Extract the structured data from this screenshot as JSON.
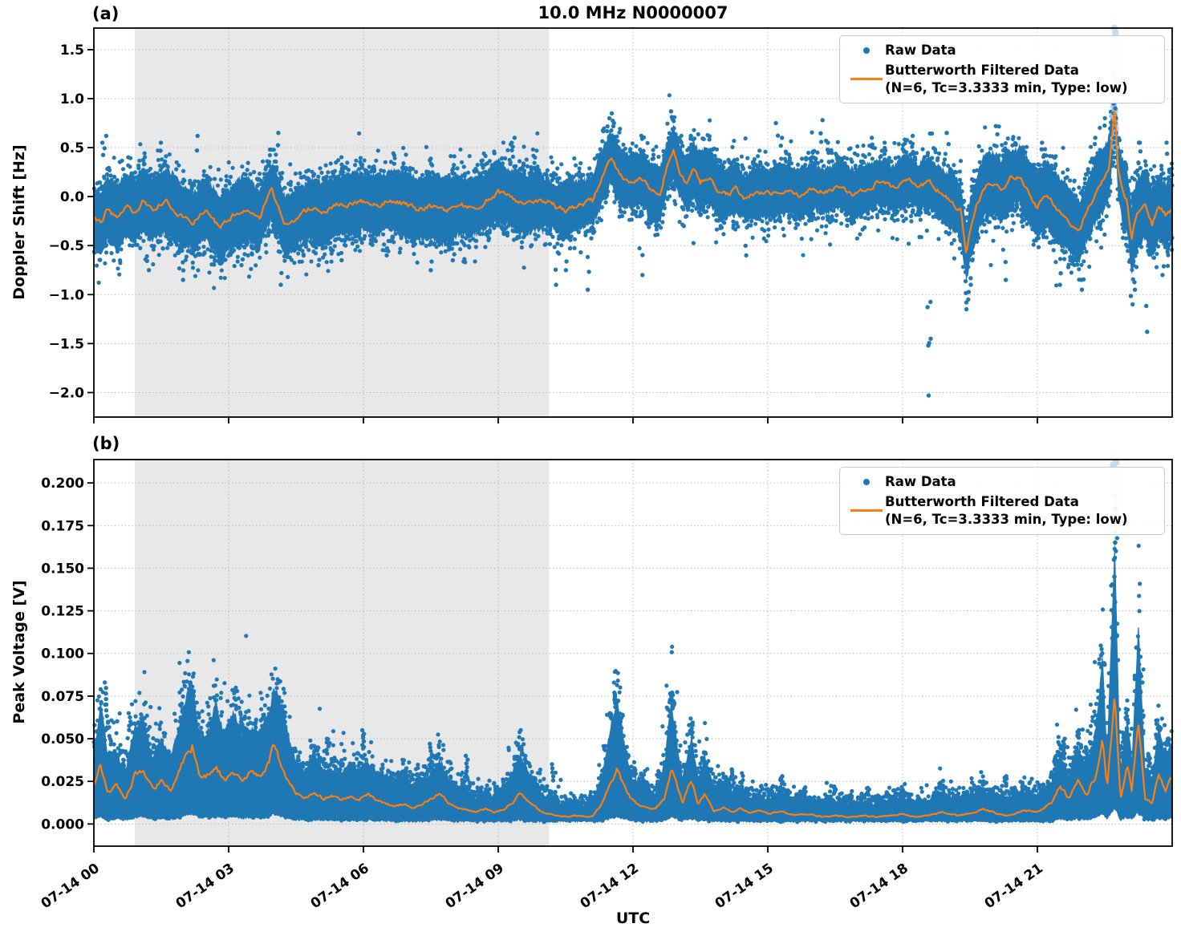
{
  "title": "10.0 MHz N0000007",
  "xlabel": "UTC",
  "colors": {
    "raw": "#1f77b4",
    "raw_faint": "#bcd7ec",
    "filtered": "#ff7f0e",
    "night_shade": "#e8e8e8",
    "grid": "#b9b9b9",
    "spine": "#000000"
  },
  "legend": {
    "raw_label": "Raw Data",
    "filtered_label": "Butterworth Filtered Data",
    "filtered_params": "(N=6, Tc=3.3333 min, Type: low)"
  },
  "x_axis": {
    "lim_hours": [
      0,
      24
    ],
    "tick_hours": [
      0,
      3,
      6,
      9,
      12,
      15,
      18,
      21
    ],
    "tick_labels": [
      "07-14 00",
      "07-14 03",
      "07-14 06",
      "07-14 09",
      "07-14 12",
      "07-14 15",
      "07-14 18",
      "07-14 21"
    ],
    "night_shading_hours": [
      0.91,
      10.13
    ]
  },
  "chart_data": [
    {
      "type": "scatter+line",
      "panel_label": "(a)",
      "ylabel": "Doppler Shift [Hz]",
      "ylim": [
        -2.25,
        1.72
      ],
      "yticks": [
        1.5,
        1.0,
        0.5,
        0.0,
        -0.5,
        -1.0,
        -1.5,
        -2.0
      ],
      "ytick_labels": [
        "1.5",
        "1.0",
        "0.5",
        "0.0",
        "−0.5",
        "−1.0",
        "−1.5",
        "−2.0"
      ],
      "legend_position": "upper right",
      "grid": true,
      "band_type": "sym",
      "raw_band": {
        "segments": [
          [
            0,
            10,
            0.32
          ],
          [
            10,
            11.2,
            0.26
          ],
          [
            11.2,
            14,
            0.28
          ],
          [
            14,
            19,
            0.25
          ],
          [
            19,
            21,
            0.3
          ],
          [
            21,
            24,
            0.33
          ]
        ]
      },
      "filtered_line": {
        "x": [
          0.0,
          0.15,
          0.3,
          0.5,
          0.7,
          0.9,
          1.1,
          1.3,
          1.6,
          1.9,
          2.2,
          2.5,
          2.8,
          3.1,
          3.4,
          3.7,
          3.95,
          4.1,
          4.25,
          4.5,
          4.8,
          5.1,
          5.4,
          5.7,
          6.0,
          6.3,
          6.6,
          6.9,
          7.2,
          7.5,
          7.8,
          8.1,
          8.4,
          8.7,
          9.0,
          9.3,
          9.6,
          9.9,
          10.2,
          10.5,
          10.8,
          11.1,
          11.35,
          11.5,
          11.65,
          11.8,
          12.0,
          12.2,
          12.4,
          12.6,
          12.75,
          12.9,
          13.05,
          13.2,
          13.35,
          13.5,
          13.7,
          13.9,
          14.1,
          14.3,
          14.5,
          14.8,
          15.1,
          15.4,
          15.7,
          16.0,
          16.3,
          16.6,
          16.9,
          17.2,
          17.5,
          17.8,
          18.1,
          18.35,
          18.6,
          18.9,
          19.1,
          19.3,
          19.42,
          19.5,
          19.65,
          19.8,
          20.0,
          20.2,
          20.4,
          20.6,
          20.8,
          21.0,
          21.2,
          21.4,
          21.6,
          21.8,
          21.95,
          22.1,
          22.3,
          22.45,
          22.6,
          22.72,
          22.8,
          22.9,
          23.0,
          23.1,
          23.2,
          23.4,
          23.55,
          23.7,
          23.85,
          24.0
        ],
        "y": [
          -0.2,
          -0.28,
          -0.12,
          -0.22,
          -0.08,
          -0.15,
          -0.05,
          -0.12,
          -0.04,
          -0.18,
          -0.25,
          -0.12,
          -0.33,
          -0.2,
          -0.12,
          -0.22,
          0.07,
          -0.1,
          -0.3,
          -0.22,
          -0.13,
          -0.18,
          -0.1,
          -0.08,
          -0.05,
          -0.1,
          -0.03,
          -0.08,
          -0.13,
          -0.1,
          -0.15,
          -0.08,
          -0.12,
          -0.05,
          0.05,
          -0.02,
          -0.08,
          -0.05,
          -0.08,
          -0.15,
          -0.08,
          -0.05,
          0.25,
          0.4,
          0.28,
          0.18,
          0.15,
          0.2,
          0.05,
          0.02,
          0.3,
          0.45,
          0.25,
          0.12,
          0.28,
          0.15,
          0.22,
          0.05,
          0.02,
          0.08,
          -0.02,
          0.05,
          0.02,
          0.08,
          0.02,
          0.1,
          0.05,
          0.12,
          0.03,
          0.08,
          0.15,
          0.08,
          0.18,
          0.1,
          0.15,
          0.02,
          -0.05,
          -0.15,
          -0.6,
          -0.35,
          -0.1,
          0.1,
          0.15,
          0.05,
          0.18,
          0.22,
          0.05,
          -0.1,
          0.02,
          -0.1,
          -0.18,
          -0.3,
          -0.35,
          -0.15,
          0.05,
          0.15,
          0.3,
          0.95,
          0.3,
          0.05,
          -0.05,
          -0.45,
          -0.2,
          -0.05,
          -0.28,
          -0.1,
          -0.18,
          -0.15
        ]
      },
      "outliers": [
        [
          0.2,
          0.55
        ],
        [
          0.25,
          0.62
        ],
        [
          1.2,
          -0.75
        ],
        [
          1.5,
          0.55
        ],
        [
          2.0,
          -0.85
        ],
        [
          2.3,
          0.62
        ],
        [
          3.3,
          -0.7
        ],
        [
          4.1,
          0.65
        ],
        [
          4.15,
          -0.9
        ],
        [
          5.0,
          -0.7
        ],
        [
          5.5,
          -0.65
        ],
        [
          6.5,
          -0.6
        ],
        [
          7.5,
          -0.75
        ],
        [
          8.0,
          -0.65
        ],
        [
          9.3,
          0.55
        ],
        [
          9.35,
          0.6
        ],
        [
          10.3,
          -0.9
        ],
        [
          10.5,
          -0.75
        ],
        [
          11.0,
          -0.95
        ],
        [
          11.5,
          0.85
        ],
        [
          11.55,
          0.75
        ],
        [
          12.2,
          -0.8
        ],
        [
          12.85,
          0.87
        ],
        [
          13.0,
          0.6
        ],
        [
          13.3,
          0.62
        ],
        [
          14.5,
          -0.6
        ],
        [
          15.2,
          0.75
        ],
        [
          15.3,
          0.6
        ],
        [
          16.2,
          0.78
        ],
        [
          16.35,
          0.55
        ],
        [
          17.3,
          0.6
        ],
        [
          17.6,
          0.55
        ],
        [
          18.2,
          0.62
        ],
        [
          18.55,
          -1.52
        ],
        [
          18.57,
          -2.03
        ],
        [
          18.6,
          -1.45
        ],
        [
          19.0,
          0.65
        ],
        [
          19.42,
          -1.15
        ],
        [
          19.46,
          -1.05
        ],
        [
          19.5,
          -0.9
        ],
        [
          20.1,
          0.72
        ],
        [
          20.3,
          -0.85
        ],
        [
          21.1,
          0.55
        ],
        [
          21.5,
          -0.9
        ],
        [
          22.0,
          -0.95
        ],
        [
          22.3,
          0.6
        ],
        [
          22.5,
          0.8
        ],
        [
          23.1,
          -1.1
        ],
        [
          23.15,
          -0.95
        ],
        [
          23.3,
          0.55
        ],
        [
          23.42,
          -1.38
        ],
        [
          23.8,
          -0.8
        ],
        [
          23.9,
          0.55
        ]
      ],
      "spike": {
        "t": 22.72,
        "faint_range": [
          0.5,
          1.72
        ],
        "solid_range": [
          0.35,
          1.0
        ]
      }
    },
    {
      "type": "scatter+line",
      "panel_label": "(b)",
      "ylabel": "Peak Voltage [V]",
      "ylim": [
        -0.013,
        0.2137
      ],
      "yticks": [
        0.2,
        0.175,
        0.15,
        0.125,
        0.1,
        0.075,
        0.05,
        0.025,
        0.0
      ],
      "ytick_labels": [
        "0.200",
        "0.175",
        "0.150",
        "0.125",
        "0.100",
        "0.075",
        "0.050",
        "0.025",
        "0.000"
      ],
      "legend_position": "upper right",
      "grid": true,
      "band_type": "pos",
      "raw_band": {
        "bottom_min": 0.0012,
        "bottom_frac": 0.12,
        "top_frac": 1.85,
        "top_add": 0.005
      },
      "filtered_line": {
        "x": [
          0.0,
          0.15,
          0.3,
          0.5,
          0.7,
          0.9,
          1.1,
          1.3,
          1.5,
          1.7,
          1.9,
          2.1,
          2.2,
          2.35,
          2.5,
          2.7,
          2.9,
          3.1,
          3.3,
          3.5,
          3.7,
          3.9,
          4.0,
          4.15,
          4.3,
          4.5,
          4.7,
          4.9,
          5.1,
          5.3,
          5.5,
          5.7,
          5.9,
          6.1,
          6.3,
          6.5,
          6.7,
          6.9,
          7.1,
          7.3,
          7.5,
          7.7,
          7.9,
          8.1,
          8.3,
          8.5,
          8.7,
          8.9,
          9.1,
          9.3,
          9.5,
          9.7,
          9.9,
          10.1,
          10.3,
          10.5,
          10.7,
          10.9,
          11.1,
          11.3,
          11.5,
          11.65,
          11.8,
          11.95,
          12.1,
          12.3,
          12.5,
          12.7,
          12.85,
          12.95,
          13.1,
          13.3,
          13.45,
          13.6,
          13.8,
          14.0,
          14.2,
          14.4,
          14.6,
          14.8,
          15.0,
          15.3,
          15.6,
          15.9,
          16.2,
          16.5,
          16.8,
          17.1,
          17.4,
          17.7,
          18.0,
          18.3,
          18.6,
          18.9,
          19.2,
          19.5,
          19.8,
          20.1,
          20.4,
          20.7,
          21.0,
          21.3,
          21.5,
          21.7,
          21.9,
          22.1,
          22.3,
          22.45,
          22.55,
          22.72,
          22.85,
          23.0,
          23.1,
          23.25,
          23.4,
          23.55,
          23.7,
          23.85,
          24.0
        ],
        "y": [
          0.022,
          0.035,
          0.018,
          0.022,
          0.015,
          0.028,
          0.033,
          0.02,
          0.025,
          0.02,
          0.03,
          0.045,
          0.047,
          0.03,
          0.028,
          0.035,
          0.025,
          0.032,
          0.025,
          0.03,
          0.027,
          0.035,
          0.047,
          0.035,
          0.025,
          0.018,
          0.016,
          0.019,
          0.015,
          0.017,
          0.014,
          0.016,
          0.015,
          0.017,
          0.014,
          0.012,
          0.01,
          0.012,
          0.009,
          0.011,
          0.015,
          0.018,
          0.012,
          0.009,
          0.008,
          0.007,
          0.009,
          0.007,
          0.008,
          0.012,
          0.018,
          0.012,
          0.008,
          0.006,
          0.005,
          0.004,
          0.005,
          0.004,
          0.005,
          0.012,
          0.025,
          0.032,
          0.022,
          0.015,
          0.012,
          0.01,
          0.009,
          0.015,
          0.033,
          0.025,
          0.012,
          0.026,
          0.012,
          0.018,
          0.008,
          0.01,
          0.007,
          0.009,
          0.006,
          0.008,
          0.006,
          0.007,
          0.005,
          0.006,
          0.004,
          0.005,
          0.004,
          0.005,
          0.004,
          0.005,
          0.006,
          0.004,
          0.005,
          0.007,
          0.005,
          0.006,
          0.009,
          0.006,
          0.005,
          0.008,
          0.007,
          0.012,
          0.022,
          0.015,
          0.025,
          0.018,
          0.028,
          0.05,
          0.02,
          0.078,
          0.015,
          0.035,
          0.02,
          0.06,
          0.015,
          0.012,
          0.03,
          0.02,
          0.028
        ]
      },
      "outliers": [
        [
          0.25,
          0.083
        ],
        [
          0.3,
          0.07
        ],
        [
          0.8,
          0.065
        ],
        [
          2.15,
          0.083
        ],
        [
          2.2,
          0.075
        ],
        [
          2.7,
          0.055
        ],
        [
          3.3,
          0.06
        ],
        [
          4.0,
          0.073
        ],
        [
          4.05,
          0.065
        ],
        [
          5.2,
          0.05
        ],
        [
          6.0,
          0.055
        ],
        [
          7.5,
          0.047
        ],
        [
          8.3,
          0.04
        ],
        [
          9.5,
          0.045
        ],
        [
          10.2,
          0.035
        ],
        [
          11.5,
          0.065
        ],
        [
          11.6,
          0.077
        ],
        [
          11.65,
          0.072
        ],
        [
          12.85,
          0.077
        ],
        [
          12.9,
          0.072
        ],
        [
          13.3,
          0.055
        ],
        [
          13.6,
          0.042
        ],
        [
          14.2,
          0.032
        ],
        [
          15.3,
          0.028
        ],
        [
          16.5,
          0.022
        ],
        [
          18.0,
          0.02
        ],
        [
          19.8,
          0.025
        ],
        [
          20.3,
          0.028
        ],
        [
          21.4,
          0.04
        ],
        [
          21.6,
          0.05
        ],
        [
          21.9,
          0.055
        ],
        [
          22.1,
          0.045
        ],
        [
          22.3,
          0.06
        ],
        [
          22.45,
          0.065
        ],
        [
          23.0,
          0.05
        ],
        [
          23.25,
          0.085
        ],
        [
          23.28,
          0.075
        ],
        [
          23.5,
          0.04
        ],
        [
          23.7,
          0.055
        ],
        [
          23.9,
          0.05
        ]
      ],
      "spike": {
        "t": 22.72,
        "faint_range": [
          0.175,
          0.2137
        ],
        "solid_values": [
          0.185,
          0.165,
          0.155,
          0.145,
          0.13,
          0.12,
          0.11,
          0.1,
          0.09,
          0.082
        ]
      }
    }
  ]
}
